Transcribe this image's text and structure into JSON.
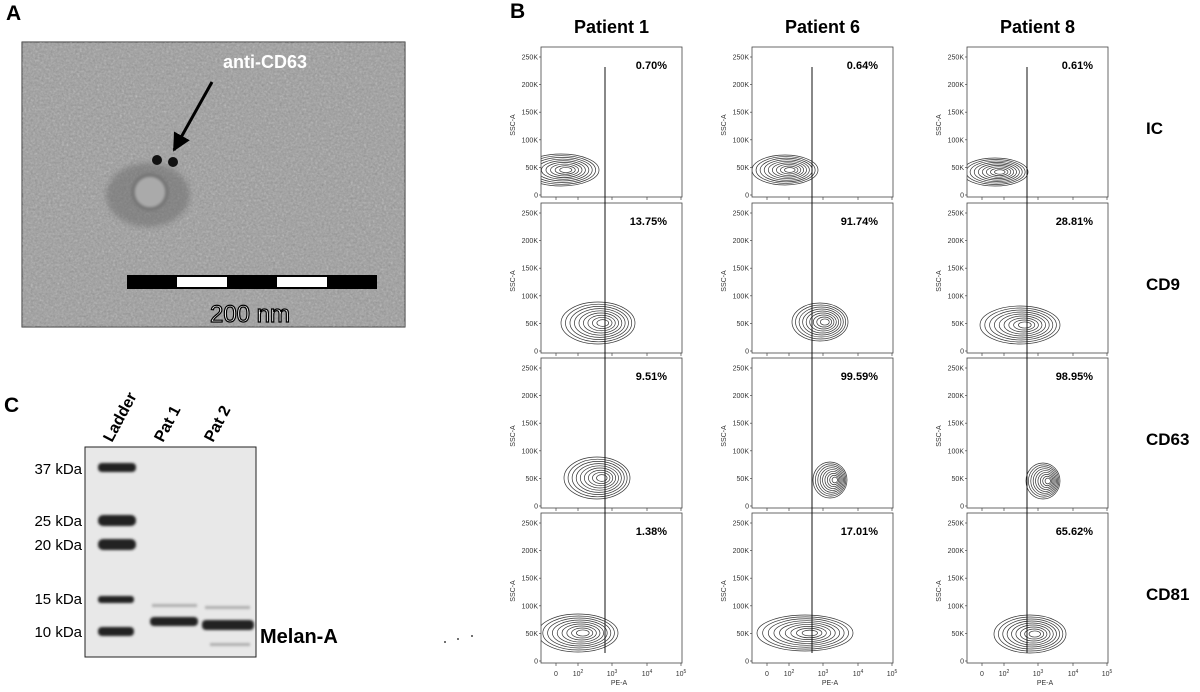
{
  "panels": {
    "A": {
      "label": "A",
      "annotation": "anti-CD63",
      "scale_label": "200 nm"
    },
    "B": {
      "label": "B",
      "columns": [
        "Patient 1",
        "Patient 6",
        "Patient 8"
      ],
      "rows": [
        "IC",
        "CD9",
        "CD63",
        "CD81"
      ],
      "percentages": [
        [
          "0.70%",
          "0.64%",
          "0.61%"
        ],
        [
          "13.75%",
          "91.74%",
          "28.81%"
        ],
        [
          "9.51%",
          "99.59%",
          "98.95%"
        ],
        [
          "1.38%",
          "17.01%",
          "65.62%"
        ]
      ],
      "y_axis_label": "SSC-A",
      "x_axis_label": "PE-A",
      "yticks": [
        "250K",
        "200K",
        "150K",
        "100K",
        "50K",
        "0"
      ],
      "xticks": [
        {
          "text": "0"
        },
        {
          "text": "10",
          "sup": "2"
        },
        {
          "text": "10",
          "sup": "3"
        },
        {
          "text": "10",
          "sup": "4"
        },
        {
          "text": "10",
          "sup": "5"
        }
      ]
    },
    "C": {
      "label": "C",
      "lanes": [
        "Ladder",
        "Pat 1",
        "Pat 2"
      ],
      "markers": [
        "37 kDa",
        "25 kDa",
        "20 kDa",
        "15 kDa",
        "10 kDa"
      ],
      "band_label": "Melan-A"
    }
  }
}
